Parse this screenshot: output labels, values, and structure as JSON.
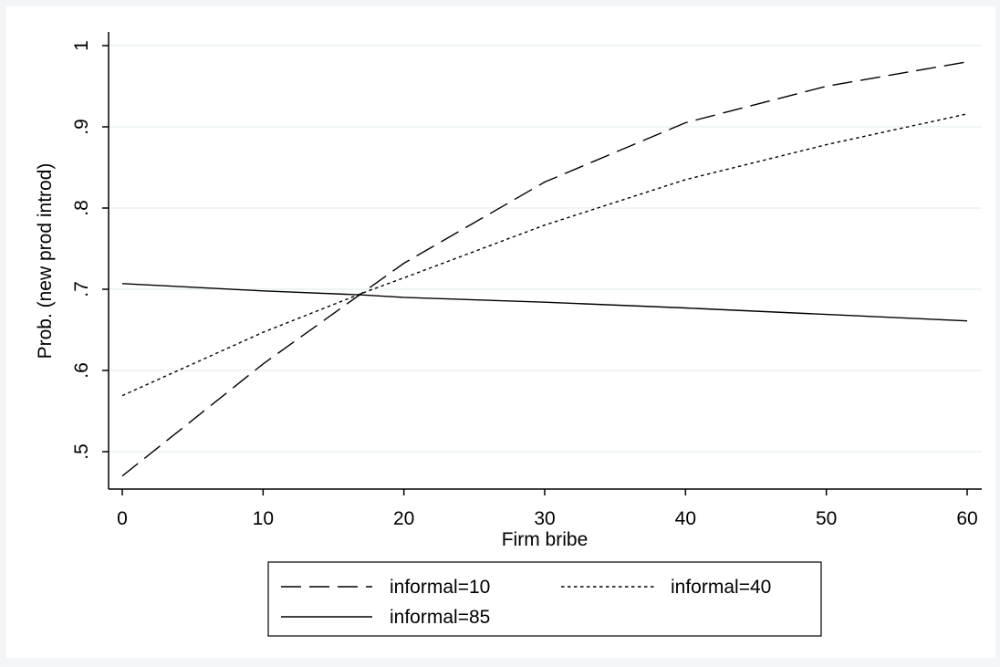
{
  "chart_data": {
    "type": "line",
    "title": "",
    "xlabel": "Firm bribe",
    "ylabel": "Prob. (new prod introd)",
    "xlim": [
      0,
      60
    ],
    "ylim": [
      0.45,
      1.0
    ],
    "x_ticks": [
      0,
      10,
      20,
      30,
      40,
      50,
      60
    ],
    "x_tick_labels": [
      "0",
      "10",
      "20",
      "30",
      "40",
      "50",
      "60"
    ],
    "y_ticks": [
      0.5,
      0.6,
      0.7,
      0.8,
      0.9,
      1.0
    ],
    "y_tick_labels": [
      ".5",
      ".6",
      ".7",
      ".8",
      ".9",
      "1"
    ],
    "grid": "horizontal",
    "legend_placement": "bottom",
    "colors": {
      "line": "#000000",
      "plot_background": "#ffffff",
      "page_background": "#f3f5f7",
      "grid": "#eaf0f2"
    },
    "series": [
      {
        "name": "informal=10",
        "style": "long-dash",
        "x": [
          0,
          10,
          17,
          20,
          30,
          40,
          50,
          60
        ],
        "y": [
          0.47,
          0.608,
          0.695,
          0.732,
          0.832,
          0.905,
          0.95,
          0.98
        ]
      },
      {
        "name": "informal=40",
        "style": "short-dash",
        "x": [
          0,
          10,
          17,
          20,
          30,
          40,
          50,
          60
        ],
        "y": [
          0.569,
          0.647,
          0.695,
          0.714,
          0.779,
          0.835,
          0.878,
          0.916
        ]
      },
      {
        "name": "informal=85",
        "style": "solid",
        "x": [
          0,
          10,
          17,
          20,
          30,
          40,
          50,
          60
        ],
        "y": [
          0.707,
          0.698,
          0.693,
          0.69,
          0.684,
          0.677,
          0.669,
          0.661
        ]
      }
    ]
  }
}
